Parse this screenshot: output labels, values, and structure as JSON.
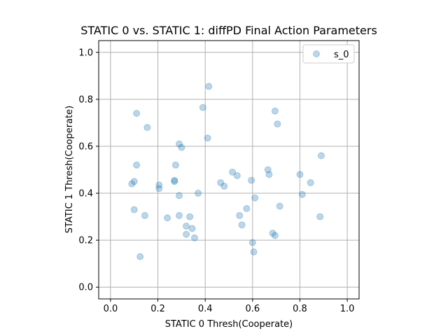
{
  "chart_data": {
    "type": "scatter",
    "title": "STATIC 0 vs. STATIC 1: diffPD Final Action Parameters",
    "xlabel": "STATIC 0 Thresh(Cooperate)",
    "ylabel": "STATIC 1 Thresh(Cooperate)",
    "xlim": [
      -0.05,
      1.05
    ],
    "ylim": [
      -0.05,
      1.05
    ],
    "xticks": [
      "0.0",
      "0.2",
      "0.4",
      "0.6",
      "0.8",
      "1.0"
    ],
    "yticks": [
      "0.0",
      "0.2",
      "0.4",
      "0.6",
      "0.8",
      "1.0"
    ],
    "grid": true,
    "legend_position": "top-right",
    "colors": {
      "marker_fill": "#1f77b4",
      "marker_alpha": 0.3,
      "grid": "#b0b0b0"
    },
    "series": [
      {
        "name": "s_0",
        "points": [
          [
            0.09,
            0.44
          ],
          [
            0.1,
            0.45
          ],
          [
            0.11,
            0.74
          ],
          [
            0.11,
            0.52
          ],
          [
            0.1,
            0.33
          ],
          [
            0.125,
            0.13
          ],
          [
            0.145,
            0.305
          ],
          [
            0.155,
            0.68
          ],
          [
            0.205,
            0.42
          ],
          [
            0.205,
            0.435
          ],
          [
            0.24,
            0.295
          ],
          [
            0.27,
            0.45
          ],
          [
            0.27,
            0.455
          ],
          [
            0.275,
            0.52
          ],
          [
            0.29,
            0.61
          ],
          [
            0.29,
            0.39
          ],
          [
            0.29,
            0.305
          ],
          [
            0.3,
            0.595
          ],
          [
            0.32,
            0.26
          ],
          [
            0.32,
            0.225
          ],
          [
            0.335,
            0.3
          ],
          [
            0.345,
            0.25
          ],
          [
            0.355,
            0.21
          ],
          [
            0.37,
            0.4
          ],
          [
            0.39,
            0.765
          ],
          [
            0.41,
            0.635
          ],
          [
            0.415,
            0.855
          ],
          [
            0.465,
            0.445
          ],
          [
            0.48,
            0.43
          ],
          [
            0.515,
            0.49
          ],
          [
            0.535,
            0.475
          ],
          [
            0.545,
            0.305
          ],
          [
            0.555,
            0.265
          ],
          [
            0.575,
            0.335
          ],
          [
            0.595,
            0.455
          ],
          [
            0.6,
            0.19
          ],
          [
            0.605,
            0.15
          ],
          [
            0.61,
            0.38
          ],
          [
            0.665,
            0.5
          ],
          [
            0.67,
            0.48
          ],
          [
            0.685,
            0.23
          ],
          [
            0.695,
            0.22
          ],
          [
            0.695,
            0.75
          ],
          [
            0.705,
            0.695
          ],
          [
            0.715,
            0.345
          ],
          [
            0.8,
            0.48
          ],
          [
            0.81,
            0.395
          ],
          [
            0.845,
            0.445
          ],
          [
            0.885,
            0.3
          ],
          [
            0.89,
            0.56
          ]
        ]
      }
    ]
  }
}
